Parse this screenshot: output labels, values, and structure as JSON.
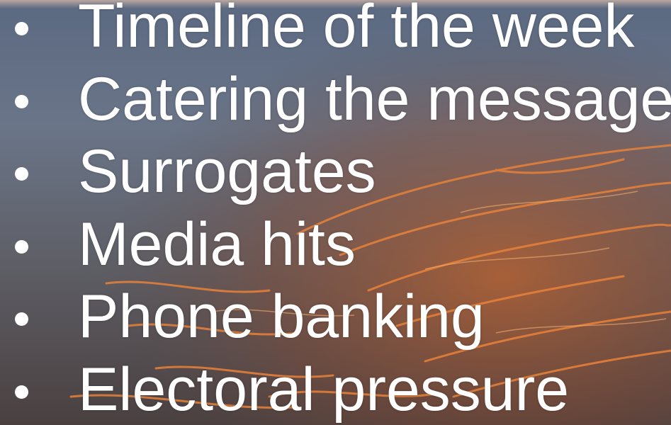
{
  "bullets": [
    "Timeline of the week",
    "Catering the message",
    "Surrogates",
    "Media hits",
    "Phone banking",
    "Electoral pressure"
  ]
}
